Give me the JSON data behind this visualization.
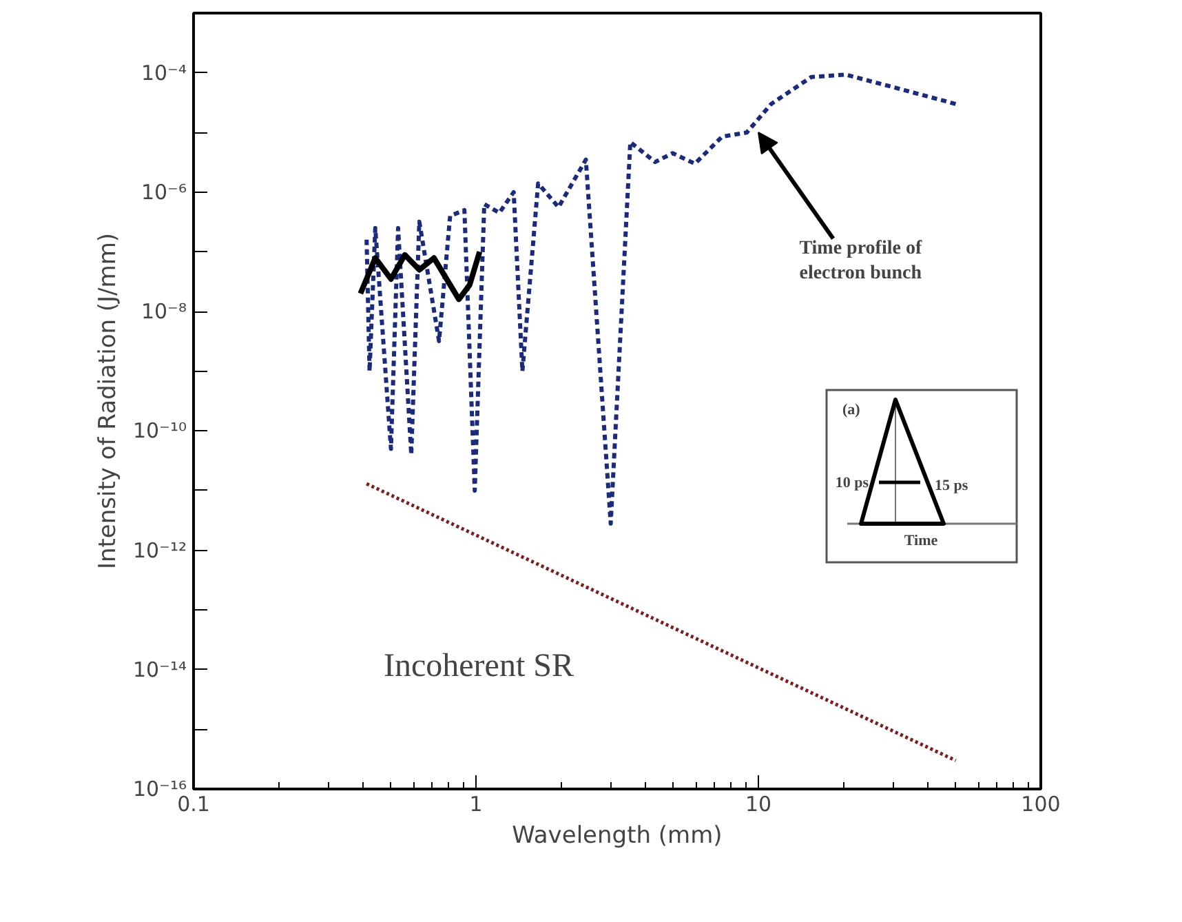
{
  "chart_data": {
    "type": "line",
    "xlabel": "Wavelength (mm)",
    "ylabel": "Intensity of Radiation (J/mm)",
    "log": "xy",
    "grid": false,
    "marker": "none",
    "xlim": [
      0.1,
      100
    ],
    "ylim": [
      1e-16,
      0.001
    ],
    "xticks": [
      0.1,
      1,
      10,
      100
    ],
    "yticks": [
      {
        "value": 1e-16,
        "label": "10⁻¹⁶"
      },
      {
        "value": 1e-15,
        "label": null
      },
      {
        "value": 1e-14,
        "label": "10⁻¹⁴"
      },
      {
        "value": 1e-13,
        "label": null
      },
      {
        "value": 1e-12,
        "label": "10⁻¹²"
      },
      {
        "value": 1e-11,
        "label": null
      },
      {
        "value": 1e-10,
        "label": "10⁻¹⁰"
      },
      {
        "value": 1e-09,
        "label": null
      },
      {
        "value": 1e-08,
        "label": "10⁻⁸"
      },
      {
        "value": 1e-07,
        "label": null
      },
      {
        "value": 1e-06,
        "label": "10⁻⁶"
      },
      {
        "value": 1e-05,
        "label": null
      },
      {
        "value": 0.0001,
        "label": "10⁻⁴"
      },
      {
        "value": 0.001,
        "label": null
      }
    ],
    "series": [
      {
        "color": "#1c2a7a",
        "line_style": "dashed",
        "x": [
          0.41,
          0.42,
          0.44,
          0.5,
          0.53,
          0.59,
          0.63,
          0.74,
          0.81,
          0.91,
          0.99,
          1.07,
          1.21,
          1.36,
          1.46,
          1.66,
          1.96,
          2.45,
          3.0,
          3.52,
          4.31,
          4.97,
          5.96,
          7.44,
          9.1,
          11.1,
          15.4,
          20.4,
          30.6,
          50
        ],
        "values": [
          1.6e-07,
          1e-09,
          2.5e-07,
          5e-11,
          2.5e-07,
          4e-11,
          3.2e-07,
          3.2e-09,
          4e-07,
          5e-07,
          1e-11,
          6.3e-07,
          4.5e-07,
          1e-06,
          1e-09,
          1.4e-06,
          5.6e-07,
          3.5e-06,
          2.8e-12,
          6.9e-06,
          3.2e-06,
          4.5e-06,
          3e-06,
          8.5e-06,
          1e-05,
          3e-05,
          8.5e-05,
          9.3e-05,
          5.6e-05,
          3e-05
        ]
      },
      {
        "color": "#000000",
        "line_style": "solid",
        "x": [
          0.39,
          0.44,
          0.5,
          0.56,
          0.63,
          0.71,
          0.81,
          0.87,
          0.95,
          1.03
        ],
        "values": [
          2e-08,
          7.9e-08,
          3.5e-08,
          8.9e-08,
          5e-08,
          7.9e-08,
          2.8e-08,
          1.6e-08,
          2.8e-08,
          1e-07
        ]
      },
      {
        "color": "#7a1f1f",
        "line_style": "dotted",
        "x": [
          0.41,
          50
        ],
        "values": [
          1.3e-11,
          3e-16
        ]
      }
    ],
    "annotations": [
      "Incoherent SR",
      {
        "text": "Time profile of\nelectron bunch",
        "x": 10,
        "y": 1e-05
      },
      "(a)",
      "10 ps",
      "15 ps",
      "Time"
    ]
  }
}
